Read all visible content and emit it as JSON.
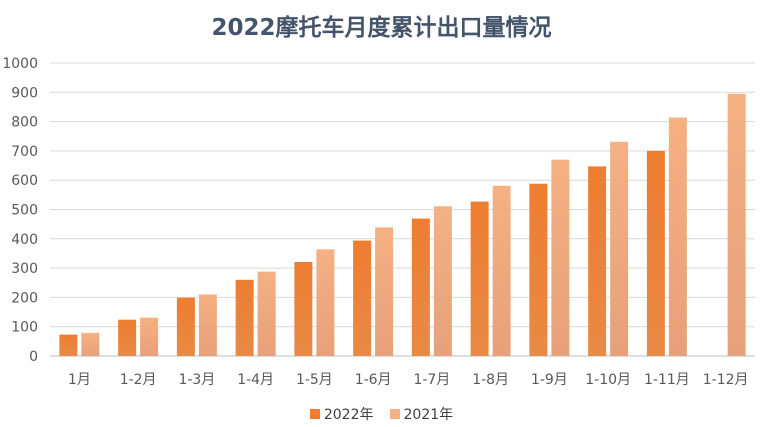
{
  "chart_data": {
    "type": "bar",
    "title": "2022摩托车月度累计出口量情况",
    "xlabel": "",
    "ylabel": "",
    "categories": [
      "1月",
      "1-2月",
      "1-3月",
      "1-4月",
      "1-5月",
      "1-6月",
      "1-7月",
      "1-8月",
      "1-9月",
      "1-10月",
      "1-11月",
      "1-12月"
    ],
    "series": [
      {
        "name": "2022年",
        "color": "#ed7d31",
        "values": [
          73,
          124,
          199,
          260,
          321,
          394,
          469,
          527,
          588,
          647,
          700,
          null
        ]
      },
      {
        "name": "2021年",
        "color": "#f4b183",
        "values": [
          79,
          131,
          210,
          288,
          364,
          439,
          511,
          581,
          670,
          731,
          814,
          895
        ]
      }
    ],
    "ylim": [
      0,
      1000
    ],
    "yticks": [
      0,
      100,
      200,
      300,
      400,
      500,
      600,
      700,
      800,
      900,
      1000
    ],
    "grid": true,
    "legend": "bottom"
  }
}
